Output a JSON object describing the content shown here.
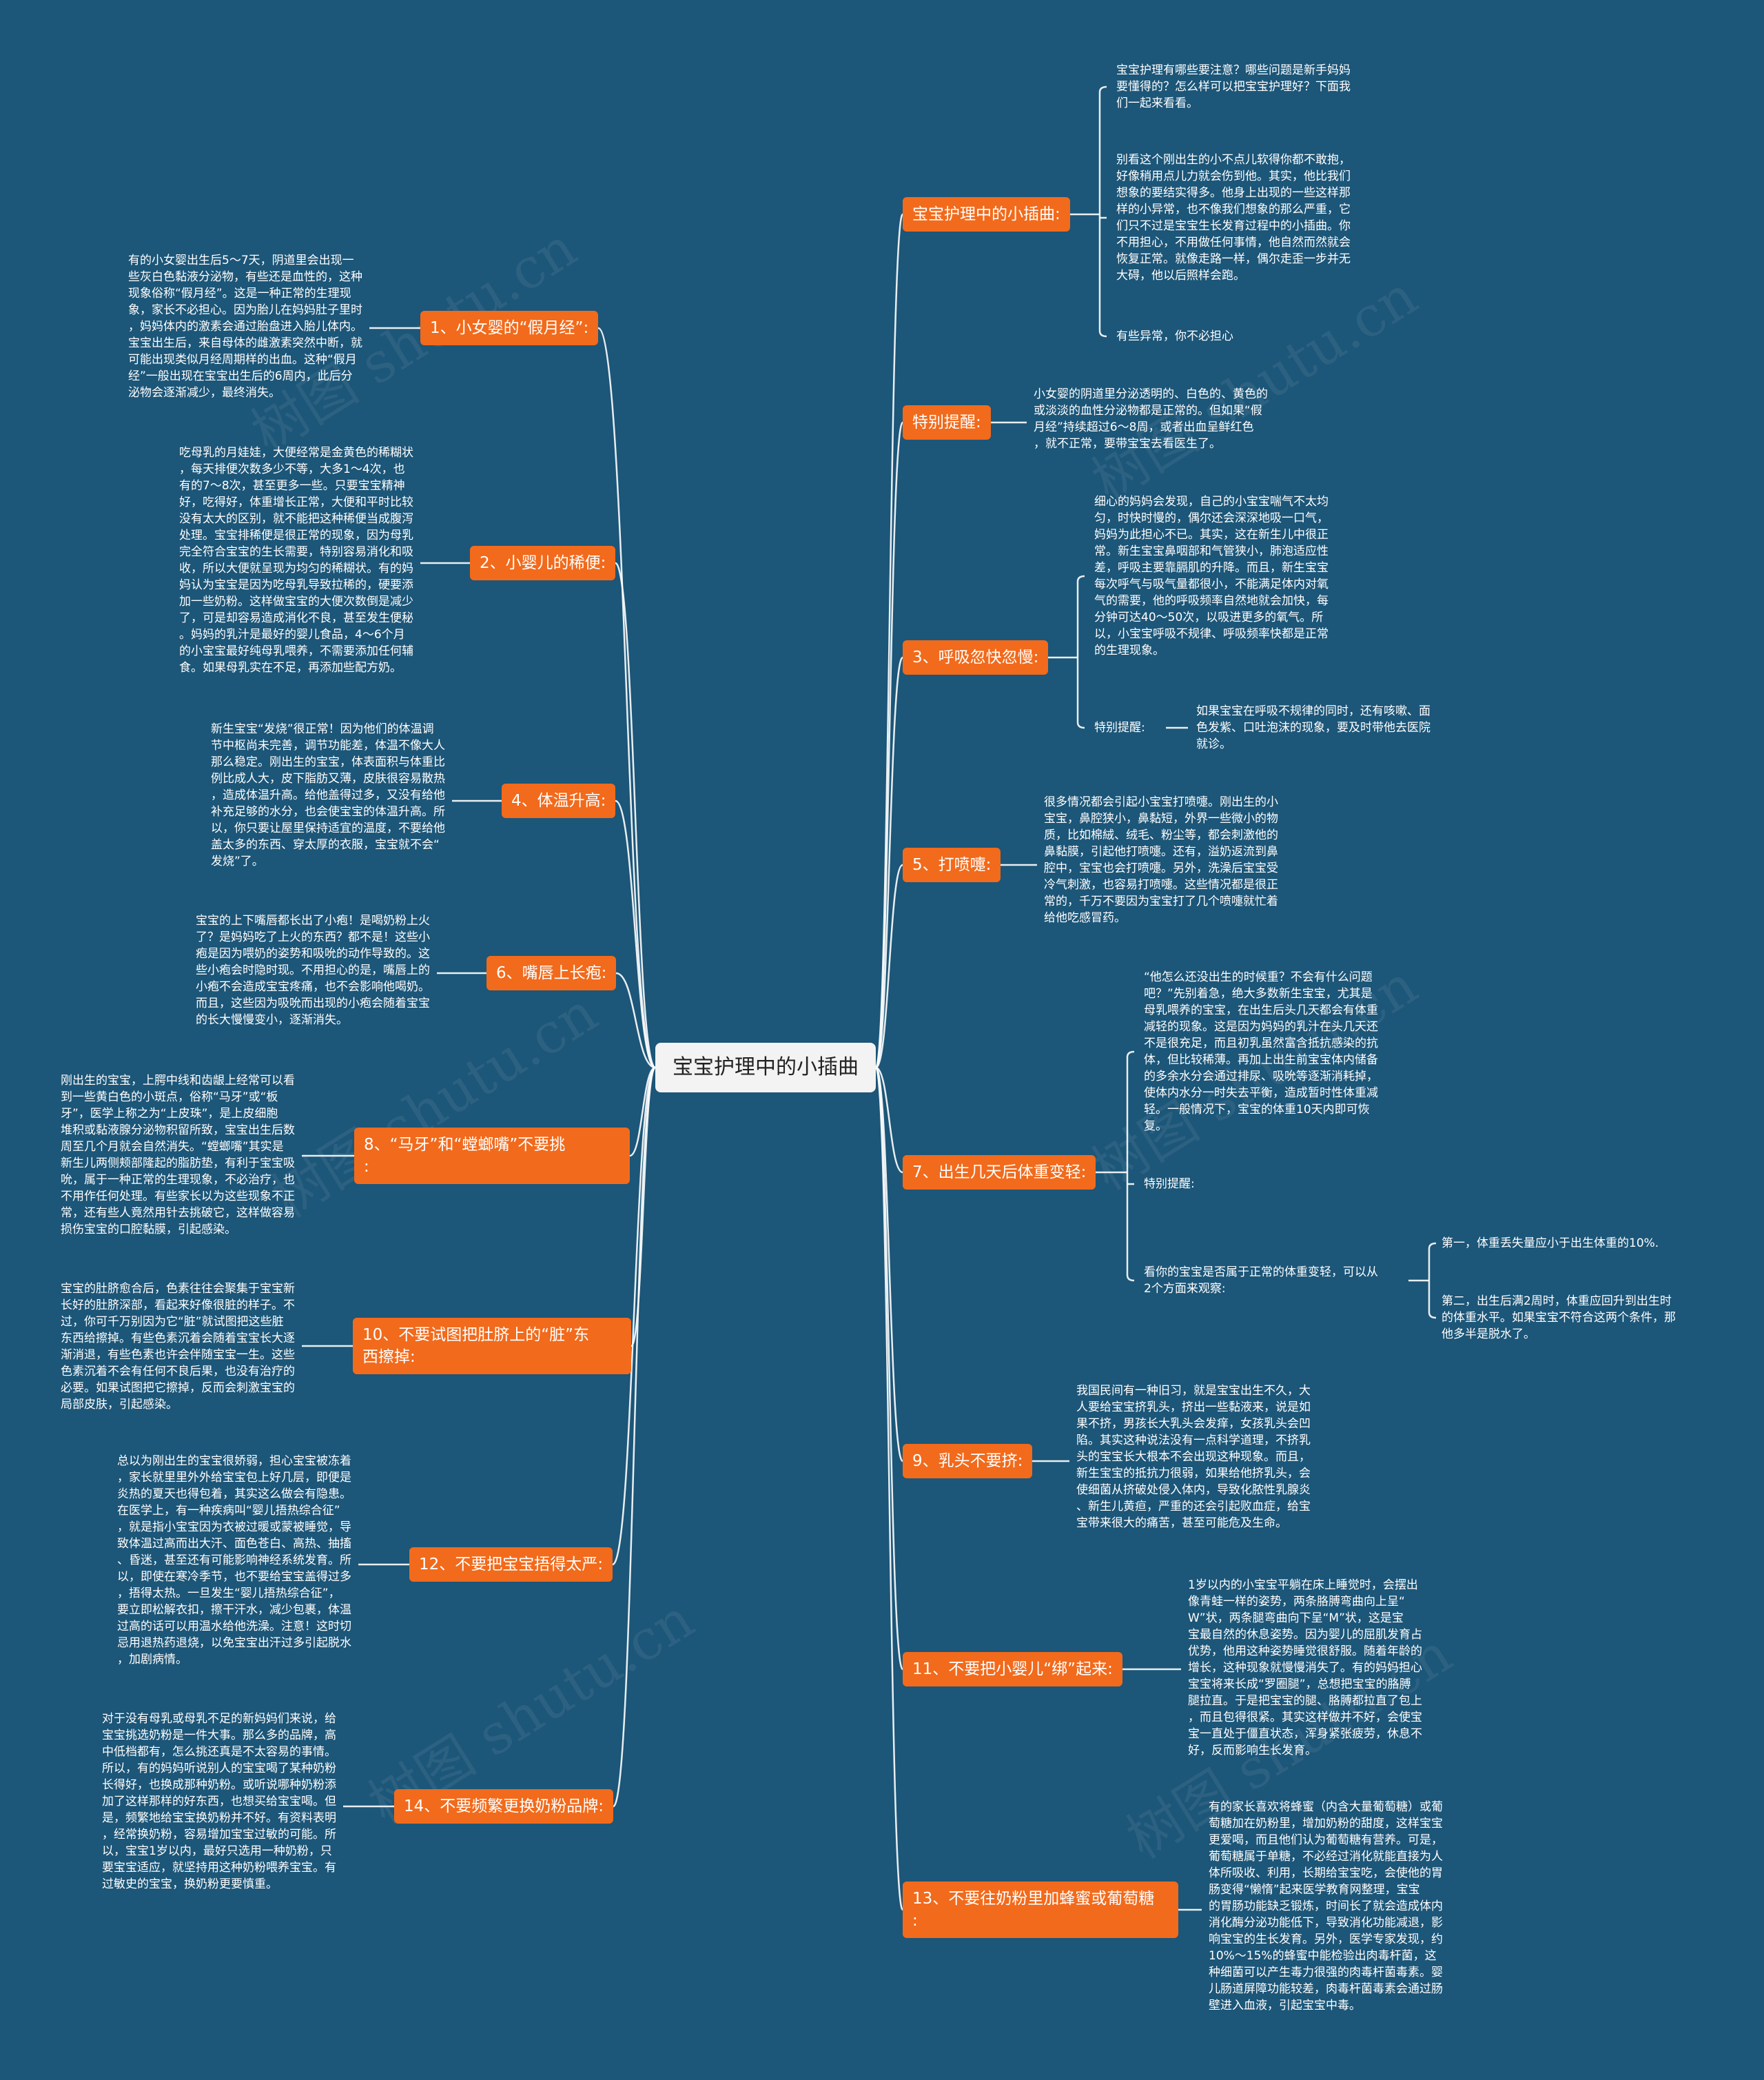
{
  "root": "宝宝护理中的小插曲",
  "watermark": "树图 shutu.cn",
  "right": [
    {
      "title": "宝宝护理中的小插曲:",
      "notes": [
        "宝宝护理有哪些要注意？哪些问题是新手妈妈\n要懂得的？怎么样可以把宝宝护理好？下面我\n们一起来看看。",
        "别看这个刚出生的小不点儿软得你都不敢抱，\n好像稍用点儿力就会伤到他。其实，他比我们\n想象的要结实得多。他身上出现的一些这样那\n样的小异常，也不像我们想象的那么严重，它\n们只不过是宝宝生长发育过程中的小插曲。你\n不用担心，不用做任何事情，他自然而然就会\n恢复正常。就像走路一样，偶尔走歪一步并无\n大碍，他以后照样会跑。",
        "有些异常，你不必担心"
      ]
    },
    {
      "title": "特别提醒:",
      "notes": [
        "小女婴的阴道里分泌透明的、白色的、黄色的\n或淡淡的血性分泌物都是正常的。但如果“假\n月经”持续超过6～8周，或者出血呈鲜红色\n，就不正常，要带宝宝去看医生了。"
      ]
    },
    {
      "title": "3、呼吸忽快忽慢:",
      "notes": [
        "细心的妈妈会发现，自己的小宝宝喘气不太均\n匀，时快时慢的，偶尔还会深深地吸一口气，\n妈妈为此担心不已。其实，这在新生儿中很正\n常。新生宝宝鼻咽部和气管狭小，肺泡适应性\n差，呼吸主要靠膈肌的升降。而且，新生宝宝\n每次呼气与吸气量都很小，不能满足体内对氧\n气的需要，他的呼吸频率自然地就会加快，每\n分钟可达40～50次，以吸进更多的氧气。所\n以，小宝宝呼吸不规律、呼吸频率快都是正常\n的生理现象。"
      ],
      "sub_label": "特别提醒:",
      "sub_note": "如果宝宝在呼吸不规律的同时，还有咳嗽、面\n色发紫、口吐泡沫的现象，要及时带他去医院\n就诊。"
    },
    {
      "title": "5、打喷嚏:",
      "notes": [
        "很多情况都会引起小宝宝打喷嚏。刚出生的小\n宝宝，鼻腔狭小，鼻黏短，外界一些微小的物\n质，比如棉絨、绒毛、粉尘等，都会刺激他的\n鼻黏膜，引起他打喷嚏。还有，溢奶返流到鼻\n腔中，宝宝也会打喷嚏。另外，洗澡后宝宝受\n冷气刺激，也容易打喷嚏。这些情况都是很正\n常的，千万不要因为宝宝打了几个喷嚏就忙着\n给他吃感冒药。"
      ]
    },
    {
      "title": "7、出生几天后体重变轻:",
      "notes": [
        "“他怎么还没出生的时候重？不会有什么问题\n吧？”先别着急，绝大多数新生宝宝，尤其是\n母乳喂养的宝宝，在出生后头几天都会有体重\n减轻的现象。这是因为妈妈的乳汁在头几天还\n不是很充足，而且初乳虽然富含抵抗感染的抗\n体，但比较稀薄。再加上出生前宝宝体内储备\n的多余水分会通过排尿、吸吮等逐渐消耗掉，\n使体内水分一时失去平衡，造成暂时性体重减\n轻。一般情况下，宝宝的体重10天内即可恢\n复。"
      ],
      "sub_label": "特别提醒:",
      "sub2_label": "看你的宝宝是否属于正常的体重变轻，可以从\n2个方面来观察:",
      "sub2_items": [
        "第一，体重丢失量应小于出生体重的10%.",
        "第二，出生后满2周时，体重应回升到出生时\n的体重水平。如果宝宝不符合这两个条件，那\n他多半是脱水了。"
      ]
    },
    {
      "title": "9、乳头不要挤:",
      "notes": [
        "我国民间有一种旧习，就是宝宝出生不久，大\n人要给宝宝挤乳头，挤出一些黏液来，说是如\n果不挤，男孩长大乳头会发痒，女孩乳头会凹\n陷。其实这种说法没有一点科学道理，不挤乳\n头的宝宝长大根本不会出现这种现象。而且，\n新生宝宝的抵抗力很弱，如果给他挤乳头，会\n使细菌从挤破处侵入体内，导致化脓性乳腺炎\n、新生儿黄疸，严重的还会引起败血症，给宝\n宝带来很大的痛苦，甚至可能危及生命。"
      ]
    },
    {
      "title": "11、不要把小婴儿“绑”起来:",
      "notes": [
        "1岁以内的小宝宝平躺在床上睡觉时，会摆出\n像青蛙一样的姿势，两条胳膊弯曲向上呈“\nW”状，两条腿弯曲向下呈“M”状，这是宝\n宝最自然的休息姿势。因为婴儿的屈肌发育占\n优势，他用这种姿势睡觉很舒服。随着年龄的\n增长，这种现象就慢慢消失了。有的妈妈担心\n宝宝将来长成“罗圈腿”，总想把宝宝的胳膊\n腿拉直。于是把宝宝的腿、胳膊都拉直了包上\n，而且包得很紧。其实这样做并不好，会使宝\n宝一直处于僵直状态，浑身紧张疲劳，休息不\n好，反而影响生长发育。"
      ]
    },
    {
      "title": "13、不要往奶粉里加蜂蜜或葡萄糖\n:",
      "notes": [
        "有的家长喜欢将蜂蜜（内含大量葡萄糖）或葡\n萄糖加在奶粉里，增加奶粉的甜度，这样宝宝\n更爱喝，而且他们认为葡萄糖有营养。可是，\n葡萄糖属于单糖，不必经过消化就能直接为人\n体所吸收、利用，长期给宝宝吃，会使他的胃\n肠变得“懒惰”起来医学教育网整理，宝宝\n的胃肠功能缺乏锻炼，时间长了就会造成体内\n消化酶分泌功能低下，导致消化功能减退，影\n响宝宝的生长发育。另外，医学专家发现，约\n10%～15%的蜂蜜中能检验出肉毒杆菌，这\n种细菌可以产生毒力很强的肉毒杆菌毒素。婴\n儿肠道屏障功能较差，肉毒杆菌毒素会通过肠\n壁进入血液，引起宝宝中毒。"
      ]
    }
  ],
  "left": [
    {
      "title": "1、小女婴的“假月经”:",
      "note": "有的小女婴出生后5～7天，阴道里会出现一\n些灰白色黏液分泌物，有些还是血性的，这种\n现象俗称“假月经”。这是一种正常的生理现\n象，家长不必担心。因为胎儿在妈妈肚子里时\n，妈妈体内的激素会通过胎盘进入胎儿体内。\n宝宝出生后，来自母体的雌激素突然中断，就\n可能出现类似月经周期样的出血。这种“假月\n经”一般出现在宝宝出生后的6周内，此后分\n泌物会逐渐减少，最终消失。"
    },
    {
      "title": "2、小婴儿的稀便:",
      "note": "吃母乳的月娃娃，大便经常是金黄色的稀糊状\n，每天排便次数多少不等，大多1～4次，也\n有的7～8次，甚至更多一些。只要宝宝精神\n好，吃得好，体重增长正常，大便和平时比较\n没有太大的区别，就不能把这种稀便当成腹泻\n处理。宝宝排稀便是很正常的现象，因为母乳\n完全符合宝宝的生长需要，特别容易消化和吸\n收，所以大便就呈现为均匀的稀糊状。有的妈\n妈认为宝宝是因为吃母乳导致拉稀的，硬要添\n加一些奶粉。这样做宝宝的大便次数倒是减少\n了，可是却容易造成消化不良，甚至发生便秘\n。妈妈的乳汁是最好的婴儿食品，4～6个月\n的小宝宝最好纯母乳喂养，不需要添加任何辅\n食。如果母乳实在不足，再添加些配方奶。"
    },
    {
      "title": "4、体温升高:",
      "note": "新生宝宝“发烧”很正常！因为他们的体温调\n节中枢尚未完善，调节功能差，体温不像大人\n那么稳定。刚出生的宝宝，体表面积与体重比\n例比成人大，皮下脂肪又薄，皮肤很容易散热\n，造成体温升高。给他盖得过多，又没有给他\n补充足够的水分，也会使宝宝的体温升高。所\n以，你只要让屋里保持适宜的温度，不要给他\n盖太多的东西、穿太厚的衣服，宝宝就不会“\n发烧”了。"
    },
    {
      "title": "6、嘴唇上长疱:",
      "note": "宝宝的上下嘴唇都长出了小疱！是喝奶粉上火\n了？是妈妈吃了上火的东西？都不是！这些小\n疱是因为喂奶的姿势和吸吮的动作导致的。这\n些小疱会时隐时现。不用担心的是，嘴唇上的\n小疱不会造成宝宝疼痛，也不会影响他喝奶。\n而且，这些因为吸吮而出现的小疱会随着宝宝\n的长大慢慢变小，逐渐消失。"
    },
    {
      "title": "8、“马牙”和“螳螂嘴”不要挑\n:",
      "note": "刚出生的宝宝，上腭中线和齿龈上经常可以看\n到一些黄白色的小斑点，俗称“马牙”或“板\n牙”，医学上称之为“上皮珠”，是上皮细胞\n堆积或黏液腺分泌物积留所致，宝宝出生后数\n周至几个月就会自然消失。“螳螂嘴”其实是\n新生儿两侧颊部隆起的脂肪垫，有利于宝宝吸\n吮，属于一种正常的生理现象，不必治疗，也\n不用作任何处理。有些家长以为这些现象不正\n常，还有些人竟然用针去挑破它，这样做容易\n损伤宝宝的口腔黏膜，引起感染。"
    },
    {
      "title": "10、不要试图把肚脐上的“脏”东\n西擦掉:",
      "note": "宝宝的肚脐愈合后，色素往往会聚集于宝宝新\n长好的肚脐深部，看起来好像很脏的样子。不\n过，你可千万别因为它“脏”就试图把这些脏\n东西给擦掉。有些色素沉着会随着宝宝长大逐\n渐消退，有些色素也许会伴随宝宝一生。这些\n色素沉着不会有任何不良后果，也没有治疗的\n必要。如果试图把它擦掉，反而会刺激宝宝的\n局部皮肤，引起感染。"
    },
    {
      "title": "12、不要把宝宝捂得太严:",
      "note": "总以为刚出生的宝宝很娇弱，担心宝宝被冻着\n，家长就里里外外给宝宝包上好几层，即便是\n炎热的夏天也得包着，其实这么做会有隐患。\n在医学上，有一种疾病叫“婴儿捂热综合征”\n，就是指小宝宝因为衣被过暖或蒙被睡觉，导\n致体温过高而出大汗、面色苍白、高热、抽搐\n、昏迷，甚至还有可能影响神经系统发育。所\n以，即使在寒冷季节，也不要给宝宝盖得过多\n，捂得太热。一旦发生“婴儿捂热综合征”，\n要立即松解衣扣，擦干汗水，减少包裹，体温\n过高的话可以用温水给他洗澡。注意！这时切\n忌用退热药退烧，以免宝宝出汗过多引起脱水\n，加剧病情。"
    },
    {
      "title": "14、不要频繁更换奶粉品牌:",
      "note": "对于没有母乳或母乳不足的新妈妈们来说，给\n宝宝挑选奶粉是一件大事。那么多的品牌，高\n中低档都有，怎么挑还真是不太容易的事情。\n所以，有的妈妈听说别人的宝宝喝了某种奶粉\n长得好，也换成那种奶粉。或听说哪种奶粉添\n加了这样那样的好东西，也想买给宝宝喝。但\n是，频繁地给宝宝换奶粉并不好。有资料表明\n，经常换奶粉，容易增加宝宝过敏的可能。所\n以，宝宝1岁以内，最好只选用一种奶粉，只\n要宝宝适应，就坚持用这种奶粉喂养宝宝。有\n过敏史的宝宝，换奶粉更要慎重。"
    }
  ]
}
